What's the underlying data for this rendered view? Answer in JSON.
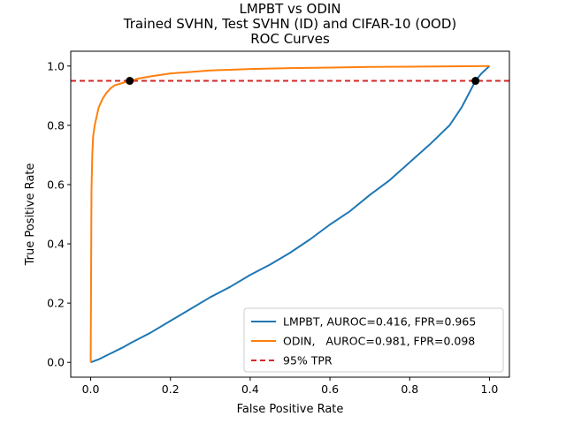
{
  "chart_data": {
    "type": "line",
    "title_lines": [
      "LMPBT vs ODIN",
      "Trained SVHN, Test SVHN (ID) and CIFAR-10 (OOD)",
      "ROC Curves"
    ],
    "xlabel": "False Positive Rate",
    "ylabel": "True Positive Rate",
    "xlim": [
      -0.05,
      1.05
    ],
    "ylim": [
      -0.05,
      1.05
    ],
    "xticks": [
      0.0,
      0.2,
      0.4,
      0.6,
      0.8,
      1.0
    ],
    "yticks": [
      0.0,
      0.2,
      0.4,
      0.6,
      0.8,
      1.0
    ],
    "xtick_labels": [
      "0.0",
      "0.2",
      "0.4",
      "0.6",
      "0.8",
      "1.0"
    ],
    "ytick_labels": [
      "0.0",
      "0.2",
      "0.4",
      "0.6",
      "0.8",
      "1.0"
    ],
    "grid": false,
    "legend_position": "lower-right",
    "series": [
      {
        "name": "LMPBT, AUROC=0.416, FPR=0.965",
        "color": "#1f77b4",
        "style": "solid",
        "x": [
          0.0,
          0.02,
          0.05,
          0.08,
          0.1,
          0.15,
          0.2,
          0.25,
          0.3,
          0.35,
          0.4,
          0.45,
          0.5,
          0.55,
          0.6,
          0.65,
          0.7,
          0.75,
          0.8,
          0.85,
          0.9,
          0.93,
          0.965,
          0.98,
          1.0
        ],
        "y": [
          0.0,
          0.01,
          0.03,
          0.05,
          0.065,
          0.1,
          0.14,
          0.18,
          0.22,
          0.255,
          0.295,
          0.33,
          0.37,
          0.415,
          0.465,
          0.51,
          0.565,
          0.615,
          0.675,
          0.735,
          0.8,
          0.86,
          0.95,
          0.975,
          1.0
        ]
      },
      {
        "name": "ODIN,   AUROC=0.981, FPR=0.098",
        "color": "#ff7f0e",
        "style": "solid",
        "x": [
          0.0,
          0.002,
          0.004,
          0.006,
          0.01,
          0.015,
          0.02,
          0.03,
          0.04,
          0.05,
          0.06,
          0.08,
          0.098,
          0.12,
          0.15,
          0.2,
          0.25,
          0.3,
          0.4,
          0.5,
          0.6,
          0.7,
          0.8,
          0.9,
          1.0
        ],
        "y": [
          0.0,
          0.58,
          0.7,
          0.76,
          0.8,
          0.83,
          0.86,
          0.89,
          0.91,
          0.925,
          0.935,
          0.943,
          0.95,
          0.958,
          0.965,
          0.975,
          0.98,
          0.985,
          0.99,
          0.993,
          0.995,
          0.997,
          0.998,
          0.999,
          1.0
        ]
      },
      {
        "name": "95% TPR",
        "color": "#d62728",
        "style": "dashed",
        "x": [
          -0.05,
          1.05
        ],
        "y": [
          0.95,
          0.95
        ]
      }
    ],
    "markers": [
      {
        "x": 0.098,
        "y": 0.95,
        "color": "#000000"
      },
      {
        "x": 0.965,
        "y": 0.95,
        "color": "#000000"
      }
    ]
  }
}
